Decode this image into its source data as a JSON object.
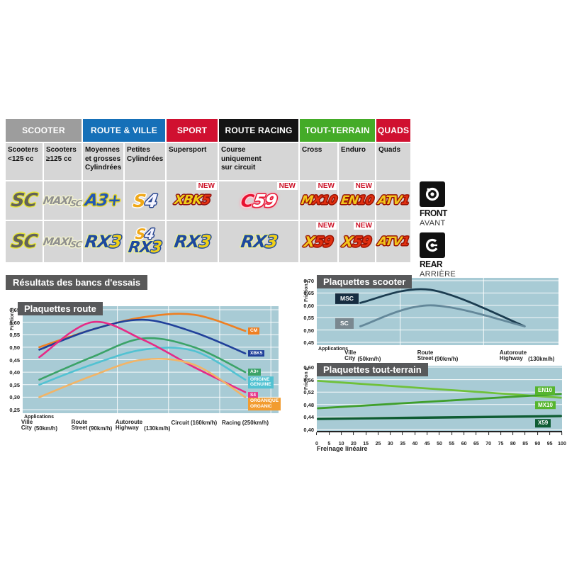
{
  "table": {
    "categories": [
      {
        "label": "SCOOTER",
        "color": "#9d9d9d"
      },
      {
        "label": "ROUTE & VILLE",
        "color": "#1670b8"
      },
      {
        "label": "SPORT",
        "color": "#d01030"
      },
      {
        "label": "ROUTE RACING",
        "color": "#141414"
      },
      {
        "label": "TOUT-TERRAIN",
        "color": "#44ab28"
      },
      {
        "label": "QUADS",
        "color": "#d01030"
      }
    ],
    "subheaders": [
      "Scooters\n<125 cc",
      "Scooters\n≥125 cc",
      "Moyennes\net grosses\nCylindrées",
      "Petites\nCylindrées",
      "Supersport",
      "Course\nuniquement\nsur circuit",
      "Cross",
      "Enduro",
      "Quads"
    ],
    "front_cells": [
      {
        "text": "SC"
      },
      {
        "a": "MAXI",
        "b": "SC"
      },
      {
        "text": "A3+"
      },
      {
        "a": "S",
        "b": "4"
      },
      {
        "a": "XBK",
        "b": "5",
        "badge": "NEW"
      },
      {
        "a": "C",
        "b": "59",
        "badge": "NEW"
      },
      {
        "a": "M",
        "b": "X10",
        "badge": "NEW"
      },
      {
        "a": "EN",
        "b": "10",
        "badge": "NEW"
      },
      {
        "a": "ATV",
        "b": "1"
      }
    ],
    "rear_cells": [
      {
        "text": "SC"
      },
      {
        "a": "MAXI",
        "b": "SC"
      },
      {
        "a": "RX",
        "b": "3"
      },
      {
        "s4a": "S",
        "s4b": "4",
        "rxa": "RX",
        "rxb": "3"
      },
      {
        "a": "RX",
        "b": "3"
      },
      {
        "a": "RX",
        "b": "3"
      },
      {
        "a": "X",
        "b": "59",
        "badge": "NEW"
      },
      {
        "a": "X",
        "b": "59",
        "badge": "NEW"
      },
      {
        "a": "ATV",
        "b": "1"
      }
    ]
  },
  "axle": {
    "front_label": "FRONT",
    "front_sub": "AVANT",
    "rear_label": "REAR",
    "rear_sub": "ARRIÈRE"
  },
  "results_title": "Résultats des bancs d'essais",
  "colors": {
    "plot_background": "#a8cbd5",
    "title_box": "#58595b",
    "cell_gray": "#d6d6d6",
    "badge_red": "#cc1126"
  },
  "chart_data": [
    {
      "id": "route",
      "type": "line",
      "title": "Plaquettes route",
      "ylabel": "Friction µ",
      "x_axis_title": "Applications",
      "ylim": [
        0.25,
        0.65
      ],
      "yticks": [
        "0,65",
        "0,60",
        "0,55",
        "0,50",
        "0,45",
        "0,40",
        "0,35",
        "0,30",
        "0,25"
      ],
      "grid": true,
      "legend_position": "right-end-of-lines",
      "categories": [
        {
          "name": "Ville",
          "name_en": "City",
          "speed": "(50km/h)"
        },
        {
          "name": "Route",
          "name_en": "Street",
          "speed": "(90km/h)"
        },
        {
          "name": "Autoroute",
          "name_en": "Highway",
          "speed": "(130km/h)"
        },
        {
          "name": "Circuit",
          "name_en": "",
          "speed": "(160km/h)"
        },
        {
          "name": "Racing",
          "name_en": "",
          "speed": "(250km/h)"
        }
      ],
      "series": [
        {
          "name": [
            "CM"
          ],
          "color": "#ee7f22",
          "label_bg": "#ee7f22",
          "values": [
            0.5,
            0.57,
            0.62,
            0.63,
            0.565
          ]
        },
        {
          "name": [
            "XBK5"
          ],
          "color": "#20409a",
          "label_bg": "#20409a",
          "values": [
            0.49,
            0.57,
            0.61,
            0.56,
            0.475
          ]
        },
        {
          "name": [
            "A3+"
          ],
          "color": "#3ba368",
          "label_bg": "#3ba368",
          "values": [
            0.37,
            0.46,
            0.535,
            0.5,
            0.4
          ]
        },
        {
          "name": [
            "ORIGINE",
            "GENUINE"
          ],
          "color": "#52c2d2",
          "label_bg": "#52c2d2",
          "values": [
            0.35,
            0.43,
            0.49,
            0.485,
            0.37
          ]
        },
        {
          "name": [
            "S4"
          ],
          "color": "#e62a86",
          "label_bg": "#e6388e",
          "values": [
            0.46,
            0.6,
            0.53,
            0.42,
            0.32
          ]
        },
        {
          "name": [
            "ORGANIQUE",
            "ORGANIC"
          ],
          "color": "#f2b466",
          "label_bg": "#f29c30",
          "values": [
            0.3,
            0.385,
            0.45,
            0.43,
            0.3
          ]
        }
      ]
    },
    {
      "id": "scooter",
      "type": "line",
      "title": "Plaquettes scooter",
      "ylabel": "Friction µ",
      "x_axis_title": "Applications",
      "ylim": [
        0.45,
        0.7
      ],
      "yticks": [
        "0,70",
        "0,65",
        "0,60",
        "0,55",
        "0,50",
        "0,45"
      ],
      "grid": true,
      "legend_position": "left-at-line-start",
      "categories": [
        {
          "name": "Ville",
          "name_en": "City",
          "speed": "(50km/h)"
        },
        {
          "name": "Route",
          "name_en": "Street",
          "speed": "(90km/h)"
        },
        {
          "name": "Autoroute",
          "name_en": "Highway",
          "speed": "(130km/h)"
        }
      ],
      "series": [
        {
          "name": [
            "MSC"
          ],
          "color": "#1b3c50",
          "label_bg": "#162c40",
          "values": [
            0.61,
            0.663,
            0.515
          ]
        },
        {
          "name": [
            "SC"
          ],
          "color": "#64889a",
          "label_bg": "#7a8890",
          "values": [
            0.515,
            0.6,
            0.515
          ]
        }
      ]
    },
    {
      "id": "terrain",
      "type": "line",
      "title": "Plaquettes tout-terrain",
      "ylabel": "Friction µ",
      "xlabel": "Freinage linéaire",
      "ylim": [
        0.4,
        0.6
      ],
      "yticks": [
        "0,60",
        "0,56",
        "0,52",
        "0,48",
        "0,44",
        "0,40"
      ],
      "xticks": [
        "0",
        "5",
        "10",
        "20",
        "15",
        "25",
        "30",
        "35",
        "40",
        "45",
        "50",
        "55",
        "60",
        "65",
        "70",
        "75",
        "80",
        "85",
        "90",
        "95",
        "100"
      ],
      "grid": true,
      "legend_position": "right-inside",
      "series": [
        {
          "name": [
            "EN10"
          ],
          "color": "#6fc13a",
          "label_bg": "#56b52e",
          "values": [
            0.556,
            0.502
          ]
        },
        {
          "name": [
            "MX10"
          ],
          "color": "#3f9f2c",
          "label_bg": "#56b52e",
          "values": [
            0.468,
            0.514
          ]
        },
        {
          "name": [
            "X59"
          ],
          "color": "#0f5c33",
          "label_bg": "#0f5c33",
          "values": [
            0.434,
            0.443
          ]
        }
      ]
    }
  ]
}
